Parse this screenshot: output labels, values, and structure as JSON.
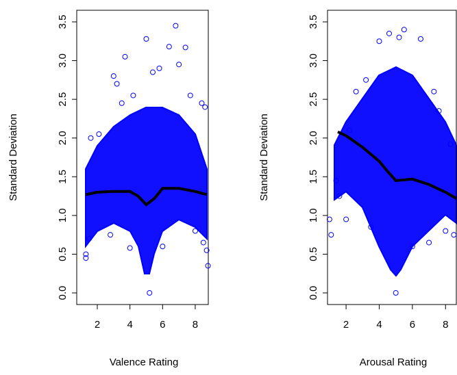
{
  "chart_data": [
    {
      "type": "scatter",
      "xlabel": "Valence Rating",
      "ylabel": "Standard Deviation",
      "xlim": [
        0.74,
        8.8
      ],
      "ylim": [
        -0.15,
        3.65
      ],
      "xticks": [
        2,
        4,
        6,
        8
      ],
      "yticks": [
        {
          "value": 0,
          "label": "0.0"
        },
        0.5,
        {
          "value": 1,
          "label": "1.0"
        },
        1.5,
        {
          "value": 2,
          "label": "2.0"
        },
        2.5,
        {
          "value": 3,
          "label": "3.0"
        },
        3.5
      ],
      "series": [
        {
          "color": "#0000ff",
          "x": [
            1.3,
            1.3,
            1.5,
            1.6,
            2.1,
            2.8,
            3.0,
            3.2,
            3.7,
            3.5,
            4.0,
            4.2,
            5.0,
            5.2,
            5.4,
            5.8,
            6.0,
            6.4,
            6.8,
            7.0,
            7.4,
            7.7,
            8.0,
            8.4,
            8.6,
            8.7,
            8.78,
            8.5
          ],
          "values": [
            0.5,
            0.45,
            0.7,
            2.0,
            2.05,
            0.75,
            2.8,
            2.7,
            3.05,
            2.45,
            0.58,
            2.55,
            3.28,
            0.0,
            2.85,
            2.9,
            0.6,
            3.18,
            3.45,
            2.95,
            3.17,
            2.55,
            0.8,
            2.45,
            2.4,
            0.55,
            0.35,
            0.65
          ]
        },
        {
          "color": "#000000",
          "type": "line",
          "x": [
            1.3,
            2,
            3,
            4,
            4.5,
            5,
            5.5,
            6,
            7,
            8,
            8.7
          ],
          "values": [
            1.27,
            1.3,
            1.31,
            1.31,
            1.25,
            1.14,
            1.22,
            1.35,
            1.35,
            1.31,
            1.27
          ]
        }
      ]
    },
    {
      "type": "scatter",
      "xlabel": "Arousal Rating",
      "ylabel": "Standard Deviation",
      "xlim": [
        0.88,
        8.65
      ],
      "ylim": [
        -0.15,
        3.65
      ],
      "xticks": [
        2,
        4,
        6,
        8
      ],
      "yticks": [
        {
          "value": 0,
          "label": "0.0"
        },
        0.5,
        {
          "value": 1,
          "label": "1.0"
        },
        1.5,
        {
          "value": 2,
          "label": "2.0"
        },
        2.5,
        {
          "value": 3,
          "label": "3.0"
        },
        3.5
      ],
      "series": [
        {
          "color": "#0000ff",
          "x": [
            1.0,
            1.1,
            1.4,
            1.6,
            2.0,
            2.2,
            2.6,
            3.2,
            3.5,
            4.0,
            4.6,
            5.0,
            5.2,
            5.5,
            6.0,
            6.5,
            7.0,
            7.3,
            7.6,
            8.0,
            8.3,
            8.5
          ],
          "values": [
            0.95,
            0.75,
            1.45,
            1.25,
            0.95,
            2.1,
            2.6,
            2.75,
            0.85,
            3.25,
            3.35,
            0.0,
            3.3,
            3.4,
            0.6,
            3.28,
            0.65,
            2.6,
            2.35,
            0.8,
            1.92,
            0.75
          ]
        },
        {
          "color": "#000000",
          "type": "line",
          "x": [
            1.5,
            2,
            3,
            4,
            4.5,
            5,
            5.5,
            6,
            7,
            8,
            8.65
          ],
          "values": [
            2.08,
            2.03,
            1.88,
            1.7,
            1.57,
            1.45,
            1.46,
            1.47,
            1.4,
            1.3,
            1.22
          ]
        }
      ]
    }
  ]
}
